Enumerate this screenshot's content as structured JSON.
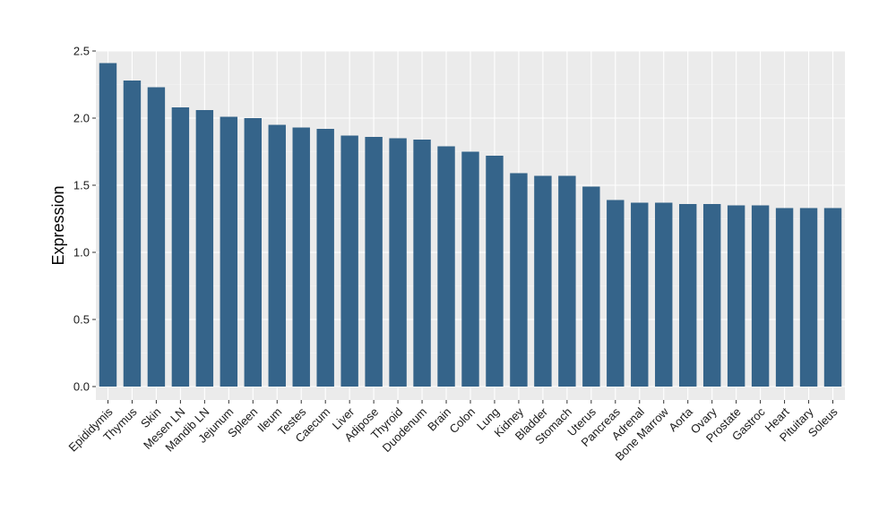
{
  "chart_data": {
    "type": "bar",
    "title": "",
    "xlabel": "",
    "ylabel": "Expression",
    "categories": [
      "Epididymis",
      "Thymus",
      "Skin",
      "Mesen LN",
      "Mandib LN",
      "Jejunum",
      "Spleen",
      "Ileum",
      "Testes",
      "Caecum",
      "Liver",
      "Adipose",
      "Thyroid",
      "Duodenum",
      "Brain",
      "Colon",
      "Lung",
      "Kidney",
      "Bladder",
      "Stomach",
      "Uterus",
      "Pancreas",
      "Adrenal",
      "Bone Marrow",
      "Aorta",
      "Ovary",
      "Prostate",
      "Gastroc",
      "Heart",
      "Pituitary",
      "Soleus"
    ],
    "values": [
      2.41,
      2.28,
      2.23,
      2.08,
      2.06,
      2.01,
      2.0,
      1.95,
      1.93,
      1.92,
      1.87,
      1.86,
      1.85,
      1.84,
      1.79,
      1.75,
      1.72,
      1.59,
      1.57,
      1.57,
      1.49,
      1.39,
      1.37,
      1.37,
      1.36,
      1.36,
      1.35,
      1.35,
      1.33,
      1.33,
      1.33
    ],
    "ylim": [
      -0.1,
      2.5
    ],
    "yticks": [
      0.0,
      0.5,
      1.0,
      1.5,
      2.0,
      2.5
    ],
    "ytick_labels": [
      "0.0",
      "0.5",
      "1.0",
      "1.5",
      "2.0",
      "2.5"
    ],
    "grid": true,
    "legend": "none",
    "colors": {
      "bar": "#35648a",
      "panel": "#ebebeb",
      "grid_major": "#ffffff",
      "grid_minor": "#f5f5f5"
    }
  }
}
